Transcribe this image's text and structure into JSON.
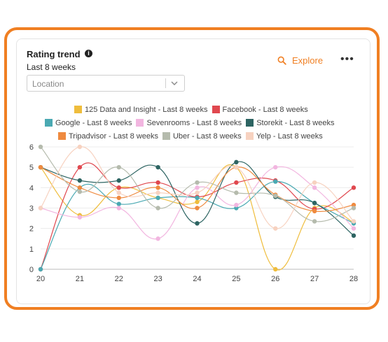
{
  "header": {
    "title": "Rating trend",
    "subtitle": "Last 8 weeks",
    "explore_label": "Explore",
    "more_label": "•••"
  },
  "filter": {
    "placeholder": "Location"
  },
  "colors": {
    "accent": "#f07f22"
  },
  "chart_data": {
    "type": "line",
    "title": "",
    "xlabel": "",
    "ylabel": "",
    "x": [
      20,
      21,
      22,
      23,
      24,
      25,
      26,
      27,
      28
    ],
    "ylim": [
      0,
      6
    ],
    "yticks": [
      0,
      1,
      2,
      3,
      4,
      5,
      6
    ],
    "grid": "horizontal",
    "legend": "top",
    "series": [
      {
        "name": "125 Data and Insight - Last 8 weeks",
        "color": "#efbd3c",
        "values": [
          5,
          2.65,
          4,
          3.5,
          3.3,
          5,
          0,
          3,
          2.3
        ]
      },
      {
        "name": "Facebook - Last 8 weeks",
        "color": "#e0484f",
        "values": [
          0,
          5,
          4,
          4.25,
          3.55,
          4.25,
          4.35,
          2.95,
          4
        ]
      },
      {
        "name": "Google - Last 8 weeks",
        "color": "#4aa9b2",
        "values": [
          0,
          4,
          3.2,
          3.5,
          3.5,
          3,
          4.3,
          3.25,
          2.25
        ]
      },
      {
        "name": "Sevenrooms - Last 8 weeks",
        "color": "#f2b6e0",
        "values": [
          3,
          2.55,
          3,
          1.5,
          4,
          3.15,
          5,
          4,
          2
        ]
      },
      {
        "name": "Storekit - Last 8 weeks",
        "color": "#2d6462",
        "values": [
          5,
          4.35,
          4.35,
          5,
          2.25,
          5.25,
          3.55,
          3.25,
          1.65
        ]
      },
      {
        "name": "Tripadvisor - Last 8 weeks",
        "color": "#ef8a3f",
        "values": [
          5,
          4,
          3.5,
          4,
          3,
          5,
          3.65,
          2.85,
          3.15
        ]
      },
      {
        "name": "Uber - Last 8 weeks",
        "color": "#b5bbad",
        "values": [
          6,
          3.8,
          5,
          3,
          4.25,
          3.75,
          3.6,
          2.35,
          3
        ]
      },
      {
        "name": "Yelp - Last 8 weeks",
        "color": "#f7d2c0",
        "values": [
          3,
          6,
          3.75,
          3.75,
          3.75,
          5,
          2,
          4.25,
          2.35
        ]
      }
    ]
  }
}
